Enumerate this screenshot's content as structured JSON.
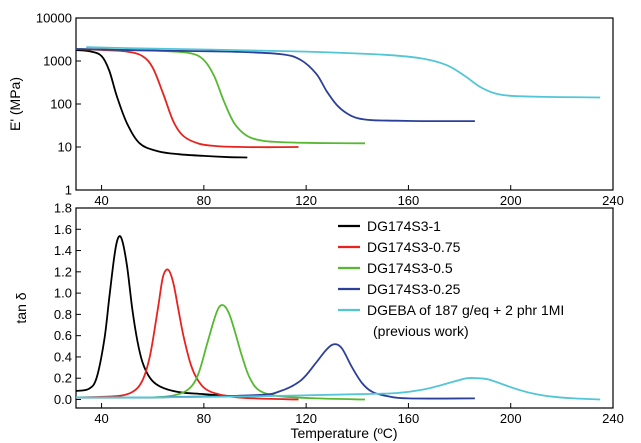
{
  "chart_data": [
    {
      "type": "line",
      "xlabel": "",
      "ylabel": "E' (MPa)",
      "yscale": "log",
      "xlim": [
        30,
        240
      ],
      "ylim": [
        1,
        10000
      ],
      "xticks": [
        40,
        80,
        120,
        160,
        200,
        240
      ],
      "yticks": [
        1,
        10,
        100,
        1000,
        10000
      ],
      "ytick_labels": [
        "1",
        "10",
        "100",
        "1000",
        "10000"
      ],
      "series": [
        {
          "name": "DG174S3-1",
          "color": "#000000",
          "x": [
            30,
            36,
            40,
            43,
            46,
            50,
            55,
            62,
            70,
            80,
            90,
            97
          ],
          "y": [
            1800,
            1650,
            1300,
            600,
            150,
            35,
            12,
            8,
            6.8,
            6.2,
            5.8,
            5.7
          ]
        },
        {
          "name": "DG174S3-0.75",
          "color": "#e8231f",
          "x": [
            30,
            40,
            50,
            56,
            60,
            64,
            68,
            72,
            78,
            85,
            95,
            105,
            117
          ],
          "y": [
            1900,
            1800,
            1650,
            1300,
            700,
            180,
            40,
            18,
            12,
            10.5,
            10,
            9.9,
            10
          ]
        },
        {
          "name": "DG174S3-0.5",
          "color": "#57b932",
          "x": [
            30,
            50,
            65,
            75,
            80,
            84,
            88,
            92,
            97,
            103,
            110,
            120,
            130,
            143
          ],
          "y": [
            1900,
            1800,
            1700,
            1500,
            1050,
            450,
            110,
            35,
            18,
            14,
            13,
            12.5,
            12.3,
            12.2
          ]
        },
        {
          "name": "DG174S3-0.25",
          "color": "#2c3f99",
          "x": [
            30,
            60,
            90,
            110,
            118,
            124,
            128,
            132,
            136,
            140,
            146,
            155,
            165,
            175,
            186
          ],
          "y": [
            1900,
            1750,
            1650,
            1450,
            1050,
            500,
            200,
            95,
            60,
            47,
            42,
            41,
            40,
            40,
            40
          ]
        },
        {
          "name": "DGEBA of 187 g/eq + 2 phr 1MI (previous work)",
          "color": "#52c6d6",
          "x": [
            34,
            50,
            80,
            120,
            150,
            165,
            175,
            182,
            188,
            194,
            200,
            210,
            220,
            235
          ],
          "y": [
            2100,
            2000,
            1850,
            1650,
            1400,
            1150,
            800,
            450,
            250,
            175,
            155,
            148,
            145,
            142
          ]
        }
      ]
    },
    {
      "type": "line",
      "xlabel": "Temperature (ºC)",
      "ylabel": "tan δ",
      "xlim": [
        30,
        240
      ],
      "ylim": [
        -0.08,
        1.8
      ],
      "xticks": [
        40,
        80,
        120,
        160,
        200,
        240
      ],
      "yticks": [
        0.0,
        0.2,
        0.4,
        0.6,
        0.8,
        1.0,
        1.2,
        1.4,
        1.6,
        1.8
      ],
      "ytick_labels": [
        "0.0",
        "0.2",
        "0.4",
        "0.6",
        "0.8",
        "1.0",
        "1.2",
        "1.4",
        "1.6",
        "1.8"
      ],
      "series": [
        {
          "name": "DG174S3-1",
          "color": "#000000",
          "x": [
            30,
            35,
            38,
            41,
            43,
            45,
            46.5,
            48,
            50,
            52,
            54,
            56,
            59,
            63,
            70,
            80,
            97
          ],
          "y": [
            0.08,
            0.1,
            0.2,
            0.55,
            0.95,
            1.35,
            1.52,
            1.5,
            1.25,
            0.85,
            0.55,
            0.35,
            0.2,
            0.12,
            0.07,
            0.05,
            0.02
          ]
        },
        {
          "name": "DG174S3-0.75",
          "color": "#e8231f",
          "x": [
            30,
            45,
            52,
            56,
            59,
            62,
            64,
            66,
            68,
            70,
            72,
            75,
            78,
            82,
            90,
            100,
            117
          ],
          "y": [
            0.02,
            0.03,
            0.07,
            0.18,
            0.42,
            0.85,
            1.15,
            1.22,
            1.1,
            0.85,
            0.6,
            0.32,
            0.17,
            0.08,
            0.03,
            0.01,
            0.0
          ]
        },
        {
          "name": "DG174S3-0.5",
          "color": "#57b932",
          "x": [
            30,
            60,
            70,
            75,
            78,
            81,
            84,
            86,
            88,
            90,
            92,
            95,
            98,
            102,
            110,
            125,
            143
          ],
          "y": [
            0.02,
            0.02,
            0.05,
            0.12,
            0.25,
            0.5,
            0.75,
            0.87,
            0.88,
            0.8,
            0.65,
            0.4,
            0.2,
            0.08,
            0.03,
            0.01,
            0.0
          ]
        },
        {
          "name": "DG174S3-0.25",
          "color": "#2c3f99",
          "x": [
            30,
            60,
            100,
            110,
            118,
            124,
            128,
            131,
            134,
            138,
            142,
            146,
            152,
            160,
            186
          ],
          "y": [
            0.02,
            0.02,
            0.04,
            0.08,
            0.18,
            0.35,
            0.47,
            0.52,
            0.48,
            0.3,
            0.15,
            0.07,
            0.03,
            0.01,
            0.01
          ]
        },
        {
          "name": "DGEBA of 187 g/eq + 2 phr 1MI (previous work)",
          "color": "#52c6d6",
          "x": [
            30,
            60,
            100,
            140,
            155,
            165,
            172,
            178,
            183,
            187,
            191,
            196,
            202,
            208,
            215,
            225,
            235
          ],
          "y": [
            0.02,
            0.02,
            0.03,
            0.05,
            0.06,
            0.09,
            0.13,
            0.17,
            0.2,
            0.2,
            0.19,
            0.15,
            0.1,
            0.06,
            0.03,
            0.01,
            0.0
          ]
        }
      ]
    }
  ],
  "legend": {
    "items": [
      {
        "label": "DG174S3-1",
        "color": "#000000"
      },
      {
        "label": "DG174S3-0.75",
        "color": "#e8231f"
      },
      {
        "label": "DG174S3-0.5",
        "color": "#57b932"
      },
      {
        "label": "DG174S3-0.25",
        "color": "#2c3f99"
      },
      {
        "label": "DGEBA of 187 g/eq + 2 phr 1MI",
        "label_line2": "(previous work)",
        "color": "#52c6d6"
      }
    ]
  }
}
